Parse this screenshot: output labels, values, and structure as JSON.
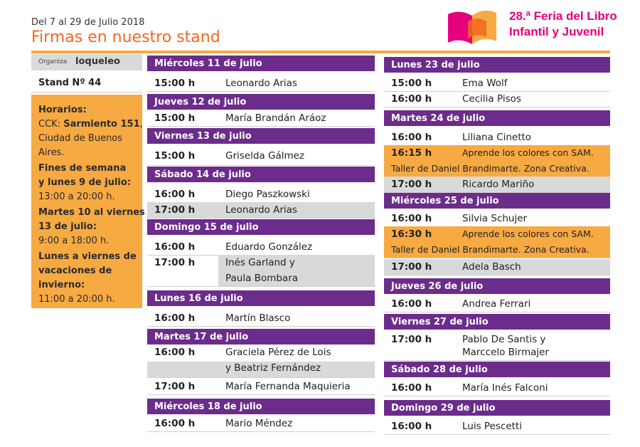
{
  "header": {
    "dates": "Del 7 al 29 de Julio 2018",
    "title": "Firmas en nuestro stand",
    "fair_line1": "28.ª Feria del Libro",
    "fair_line2": "Infantil y Juvenil",
    "logo_colors": [
      "#e5007e",
      "#f7a942",
      "#f26722"
    ]
  },
  "sidebar": {
    "organiza_label": "Organiza",
    "brand": "loqueleo",
    "stand": "Stand  Nº 44",
    "hours_lines": [
      {
        "text": "Horarios:",
        "bold": true
      },
      {
        "text": "CCK: ",
        "bold": false,
        "extra": "Sarmiento 151",
        "extra_tail": ","
      },
      {
        "text": "Ciudad de Buenos",
        "bold": false
      },
      {
        "text": "Aires.",
        "bold": false
      },
      {
        "text": "Fines de semana",
        "bold": true
      },
      {
        "text": "y lunes 9 de julio:",
        "bold": true
      },
      {
        "text": "13:00 a 20:00 h.",
        "bold": false
      },
      {
        "text": "Martes 10 al viernes",
        "bold": true
      },
      {
        "text": "13 de julio:",
        "bold": true
      },
      {
        "text": "9:00 a 18:00 h.",
        "bold": false
      },
      {
        "text": "Lunes a viernes de",
        "bold": true
      },
      {
        "text": "vacaciones de",
        "bold": true
      },
      {
        "text": "invierno:",
        "bold": true
      },
      {
        "text": "11:00 a 20:00 h.",
        "bold": false
      }
    ]
  },
  "colors": {
    "purple": "#6c2c8c",
    "orange": "#f7a942",
    "title_orange": "#f26722",
    "gray": "#d9d9d9",
    "magenta": "#e5007e"
  },
  "col_left": [
    {
      "day": "Miércoles 11 de julio",
      "rows": [
        {
          "time": "15:00 h",
          "name": "Leonardo Arias"
        }
      ]
    },
    {
      "day": "Jueves 12 de julio",
      "rows": [
        {
          "time": "15:00 h",
          "name": "María Brandán Aráoz"
        }
      ]
    },
    {
      "day": "Viernes 13 de julio",
      "rows": [
        {
          "time": "15:00 h",
          "name": "Griselda Gálmez"
        }
      ]
    },
    {
      "day": "Sábado 14 de julio",
      "rows": [
        {
          "time": "16:00 h",
          "name": "Diego Paszkowski"
        },
        {
          "time": "17:00 h",
          "name": "Leonardo Arias"
        }
      ]
    },
    {
      "day": "Domingo 15 de julio",
      "rows": [
        {
          "time": "16:00 h",
          "name": "Eduardo González"
        },
        {
          "time": "17:00 h",
          "name": "Inés Garland y",
          "name2": "Paula Bombara"
        }
      ]
    },
    {
      "day": "Lunes 16 de julio",
      "rows": [
        {
          "time": "16:00 h",
          "name": "Martín Blasco"
        }
      ]
    },
    {
      "day": "Martes 17 de julio",
      "rows": [
        {
          "time": "16:00 h",
          "name": "Graciela Pérez de Lois",
          "name2": "y Beatriz Fernández"
        },
        {
          "time": "17:00 h",
          "name": "María Fernanda Maquieria"
        }
      ]
    },
    {
      "day": "Miércoles 18 de julio",
      "rows": [
        {
          "time": "16:00 h",
          "name": "Mario Méndez"
        }
      ]
    }
  ],
  "col_right": [
    {
      "day": "Lunes 23 de julio",
      "rows": [
        {
          "time": "15:00 h",
          "name": "Ema Wolf"
        },
        {
          "time": "16:00 h",
          "name": "Cecilia Pisos"
        }
      ]
    },
    {
      "day": "Martes 24 de julio",
      "rows": [
        {
          "time": "16:00 h",
          "name": "Liliana Cinetto"
        },
        {
          "time": "16:15 h",
          "name": "Aprende los colores con SAM.",
          "name2": "Taller de Daniel Brandimarte. Zona Creativa."
        },
        {
          "time": "17:00 h",
          "name": "Ricardo Mariño"
        }
      ]
    },
    {
      "day": "Miércoles 25 de julio",
      "rows": [
        {
          "time": "16:00 h",
          "name": "Silvia Schujer"
        },
        {
          "time": "16:30 h",
          "name": "Aprende los colores con SAM.",
          "name2": "Taller de Daniel Brandimarte. Zona Creativa."
        },
        {
          "time": "17:00 h",
          "name": "Adela Basch"
        }
      ]
    },
    {
      "day": "Jueves 26 de julio",
      "rows": [
        {
          "time": "16:00 h",
          "name": "Andrea Ferrari"
        }
      ]
    },
    {
      "day": "Viernes 27 de julio",
      "rows": [
        {
          "time": "17:00 h",
          "name": "Pablo De Santis y",
          "name2": "Marccelo Birmajer"
        }
      ]
    },
    {
      "day": "Sábado 28 de julio",
      "rows": [
        {
          "time": "16:00 h",
          "name": "María Inés Falconi"
        }
      ]
    },
    {
      "day": "Domingo 29 de julio",
      "rows": [
        {
          "time": "16:00 h",
          "name": "Luis Pescetti"
        }
      ]
    }
  ]
}
